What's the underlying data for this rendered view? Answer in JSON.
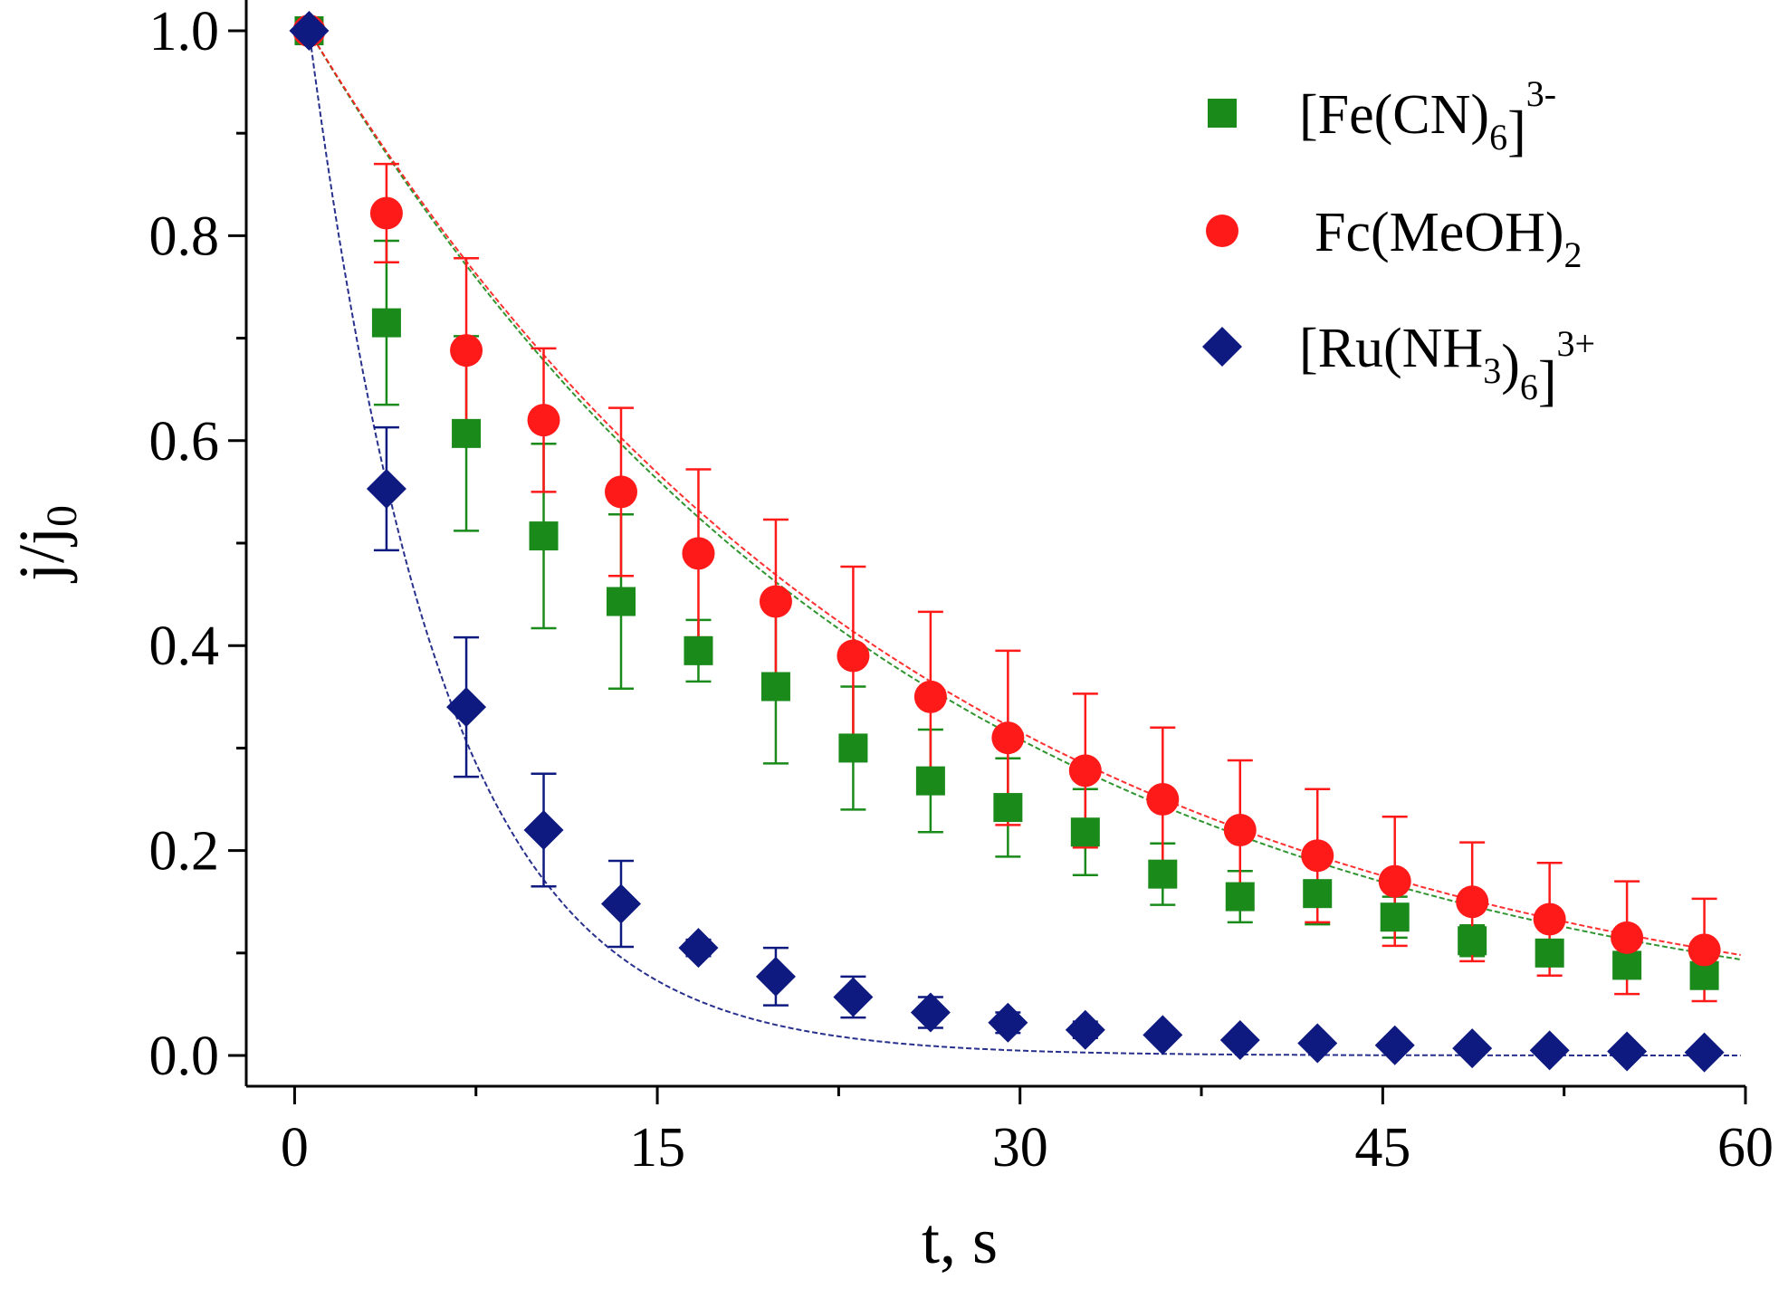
{
  "chart_data": {
    "type": "scatter",
    "xlabel": "t, s",
    "ylabel_main": "j/j",
    "ylabel_sub": "0",
    "xlim": [
      -2,
      60
    ],
    "ylim": [
      -0.03,
      1.03
    ],
    "xticks": [
      0,
      15,
      30,
      45,
      60
    ],
    "xtick_labels": [
      "0",
      "15",
      "30",
      "45",
      "60"
    ],
    "yticks": [
      0.0,
      0.2,
      0.4,
      0.6,
      0.8,
      1.0
    ],
    "ytick_labels": [
      "0.0",
      "0.2",
      "0.4",
      "0.6",
      "0.8",
      "1.0"
    ],
    "legend_position": "top-right",
    "series": [
      {
        "key": "fe",
        "legend_parts": [
          {
            "text": "[Fe(CN)",
            "style": "normal"
          },
          {
            "text": "6",
            "style": "sub"
          },
          {
            "text": "]",
            "style": "normal"
          },
          {
            "text": "3-",
            "style": "sup"
          }
        ],
        "marker": "square",
        "color": "#1a8a1a",
        "fit_tau": 25,
        "x": [
          0.6,
          3.8,
          7.1,
          10.3,
          13.5,
          16.7,
          19.9,
          23.1,
          26.3,
          29.5,
          32.7,
          35.9,
          39.1,
          42.3,
          45.5,
          48.7,
          51.9,
          55.1,
          58.3
        ],
        "y": [
          1.0,
          0.715,
          0.607,
          0.507,
          0.443,
          0.395,
          0.36,
          0.3,
          0.268,
          0.242,
          0.218,
          0.177,
          0.155,
          0.158,
          0.135,
          0.112,
          0.1,
          0.088,
          0.078
        ],
        "err": [
          0,
          0.08,
          0.095,
          0.09,
          0.085,
          0.03,
          0.075,
          0.06,
          0.05,
          0.048,
          0.042,
          0.03,
          0.025,
          0.03,
          0.02,
          0.015,
          0.01,
          0.01,
          0.01
        ]
      },
      {
        "key": "fc",
        "legend_parts": [
          {
            "text": "Fc(MeOH)",
            "style": "normal"
          },
          {
            "text": "2",
            "style": "sub"
          }
        ],
        "marker": "circle",
        "color": "#ff1a1a",
        "fit_tau": 25.5,
        "x": [
          0.6,
          3.8,
          7.1,
          10.3,
          13.5,
          16.7,
          19.9,
          23.1,
          26.3,
          29.5,
          32.7,
          35.9,
          39.1,
          42.3,
          45.5,
          48.7,
          51.9,
          55.1,
          58.3
        ],
        "y": [
          1.0,
          0.822,
          0.688,
          0.62,
          0.55,
          0.49,
          0.443,
          0.39,
          0.35,
          0.31,
          0.278,
          0.25,
          0.22,
          0.195,
          0.17,
          0.15,
          0.133,
          0.115,
          0.103
        ],
        "err": [
          0,
          0.048,
          0.09,
          0.07,
          0.082,
          0.082,
          0.08,
          0.087,
          0.083,
          0.085,
          0.075,
          0.07,
          0.068,
          0.065,
          0.063,
          0.058,
          0.055,
          0.055,
          0.05
        ]
      },
      {
        "key": "ru",
        "legend_parts": [
          {
            "text": "[Ru(NH",
            "style": "normal"
          },
          {
            "text": "3",
            "style": "sub"
          },
          {
            "text": ")",
            "style": "normal"
          },
          {
            "text": "6",
            "style": "sub"
          },
          {
            "text": "]",
            "style": "normal"
          },
          {
            "text": "3+",
            "style": "sup"
          }
        ],
        "marker": "diamond",
        "color": "#0f1a80",
        "fit_tau": 5.5,
        "x": [
          0.6,
          3.8,
          7.1,
          10.3,
          13.5,
          16.7,
          19.9,
          23.1,
          26.3,
          29.5,
          32.7,
          35.9,
          39.1,
          42.3,
          45.5,
          48.7,
          51.9,
          55.1,
          58.3
        ],
        "y": [
          1.0,
          0.553,
          0.34,
          0.22,
          0.148,
          0.105,
          0.077,
          0.057,
          0.042,
          0.032,
          0.025,
          0.02,
          0.015,
          0.012,
          0.01,
          0.007,
          0.005,
          0.004,
          0.003
        ],
        "err": [
          0,
          0.06,
          0.068,
          0.055,
          0.042,
          0.008,
          0.028,
          0.02,
          0.015,
          0.01,
          0.008,
          0.005,
          0.004,
          0.003,
          0.003,
          0.002,
          0.002,
          0.002,
          0.002
        ]
      }
    ]
  }
}
